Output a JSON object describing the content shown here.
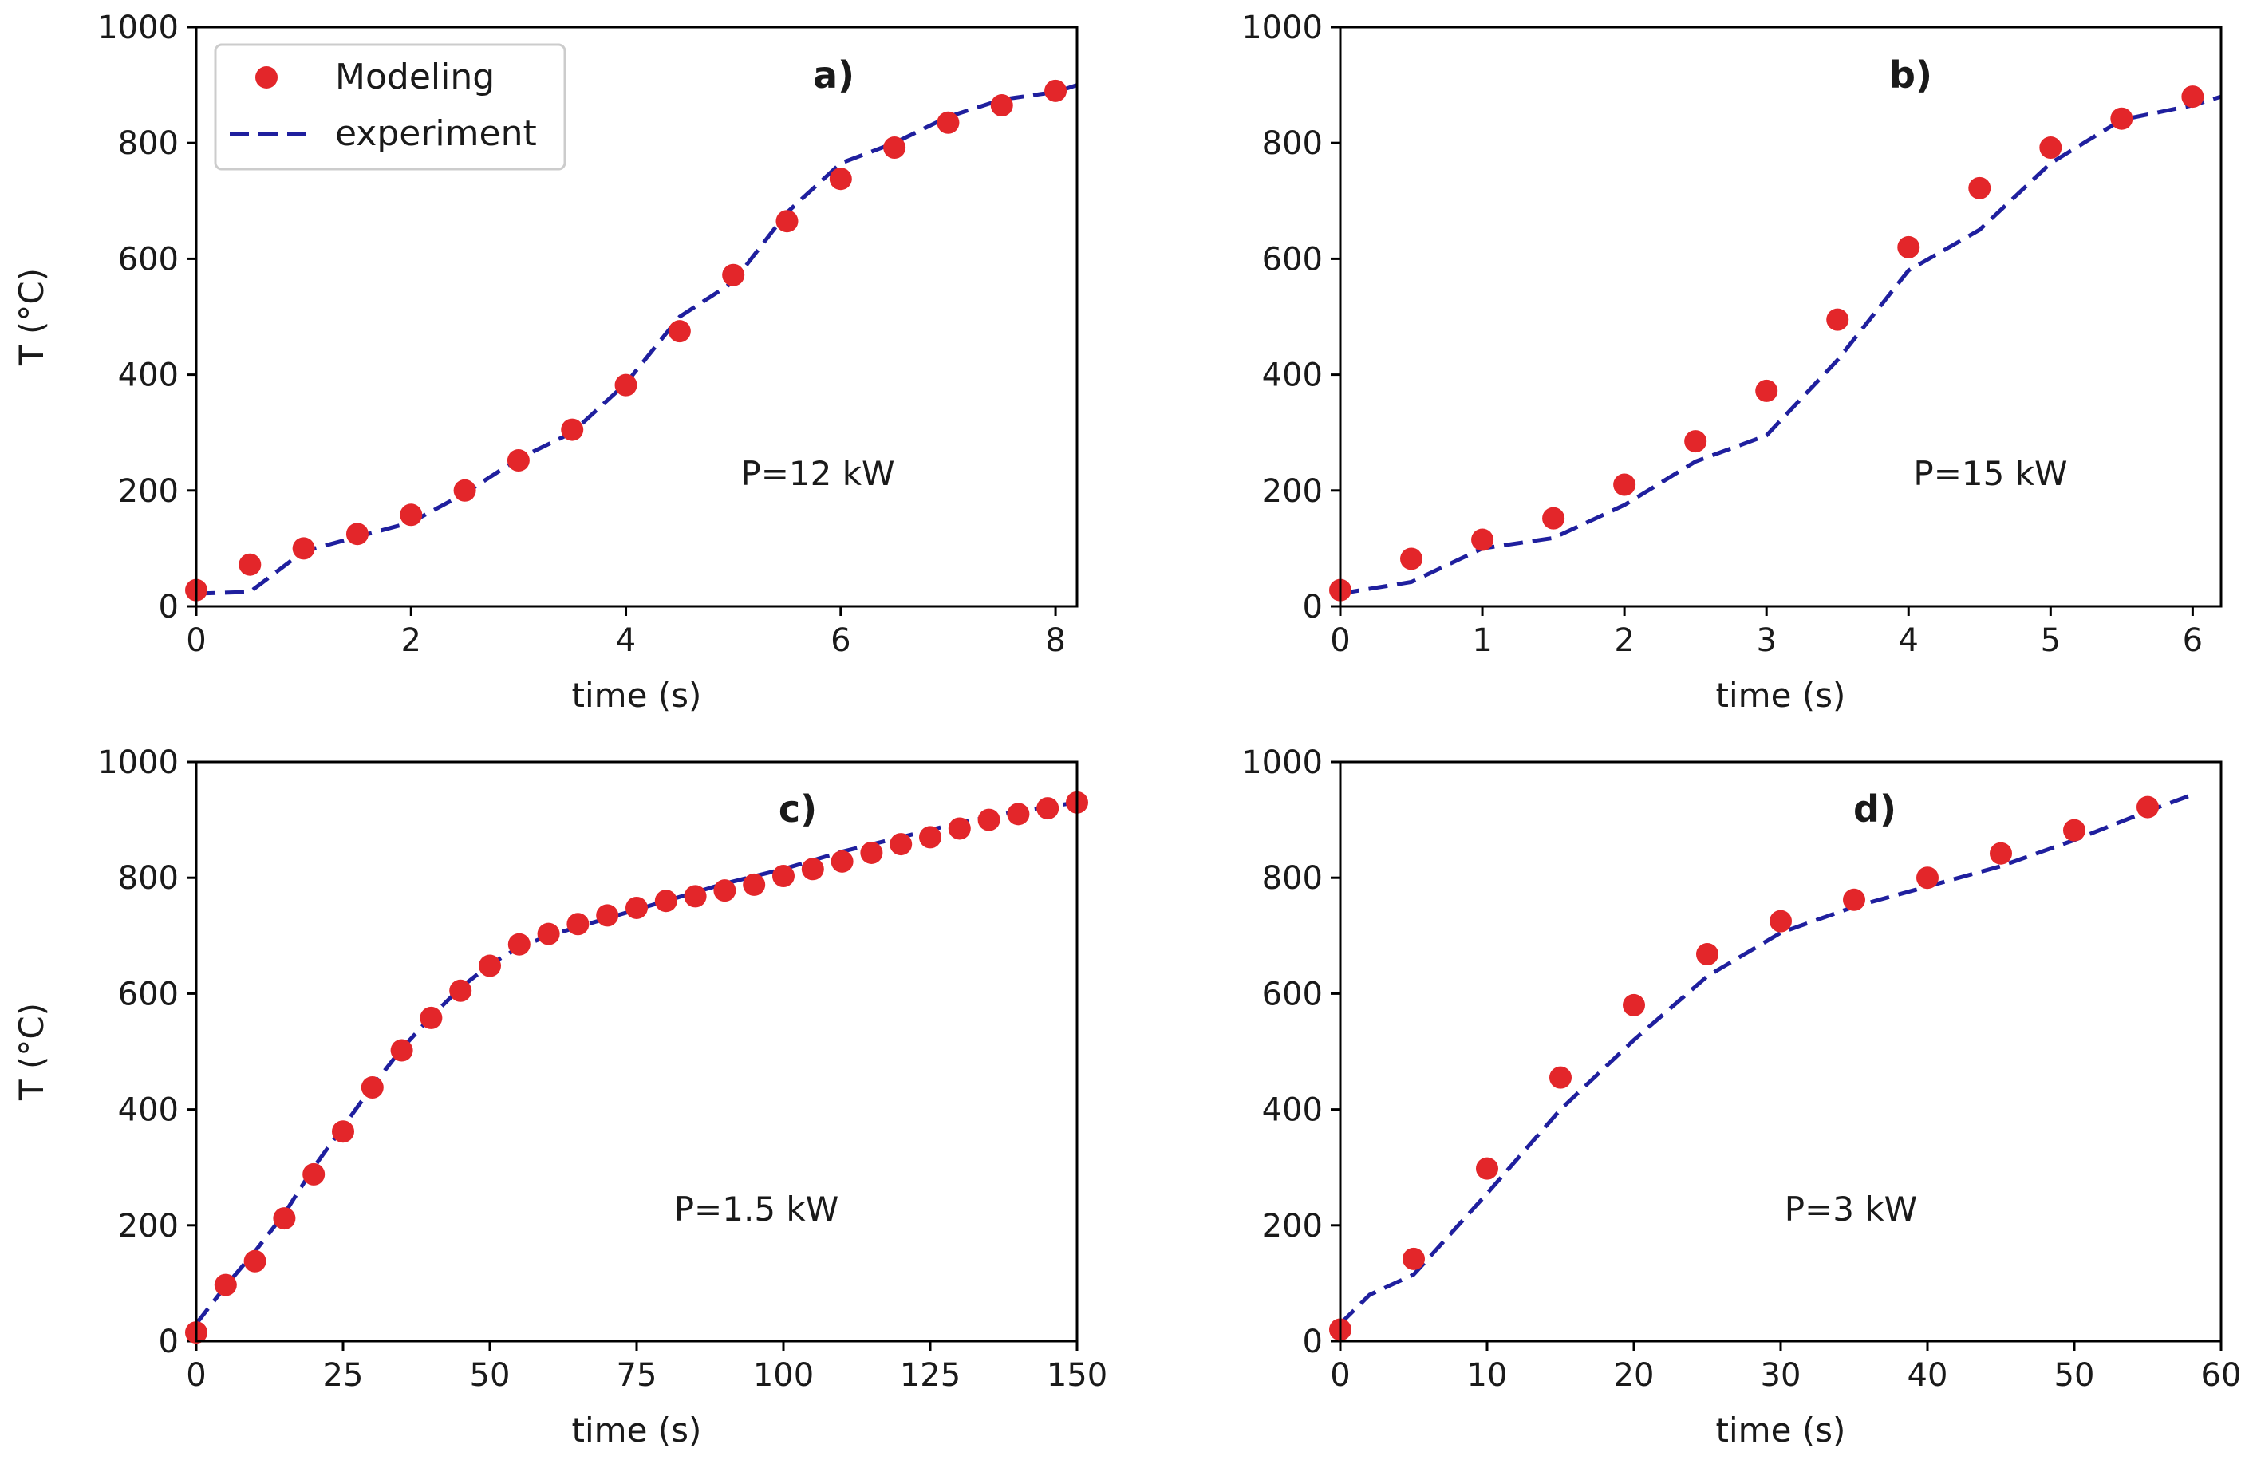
{
  "legend": {
    "modeling": "Modeling",
    "experiment": "experiment"
  },
  "colors": {
    "modeling": "#e3262a",
    "experiment": "#1f1f9e"
  },
  "chart_data": [
    {
      "type": "scatter",
      "panel": "a)",
      "annotation": "P=12 kW",
      "xlabel": "time (s)",
      "ylabel": "T (°C)",
      "xlim": [
        0,
        8.2
      ],
      "ylim": [
        0,
        1000
      ],
      "xticks": [
        0,
        2,
        4,
        6,
        8
      ],
      "yticks": [
        0,
        200,
        400,
        600,
        800,
        1000
      ],
      "legend": "upper left",
      "series": [
        {
          "name": "Modeling",
          "style": "markers",
          "x": [
            0,
            0.5,
            1,
            1.5,
            2,
            2.5,
            3,
            3.5,
            4,
            4.5,
            5,
            5.5,
            6,
            6.5,
            7,
            7.5,
            8
          ],
          "y": [
            28,
            72,
            100,
            125,
            158,
            200,
            252,
            305,
            382,
            475,
            572,
            665,
            738,
            792,
            835,
            865,
            890
          ]
        },
        {
          "name": "experiment",
          "style": "dashed",
          "x": [
            0,
            0.5,
            1,
            1.5,
            2,
            2.5,
            3,
            3.5,
            4,
            4.5,
            5,
            5.5,
            6,
            6.5,
            7,
            7.5,
            8,
            8.2
          ],
          "y": [
            22,
            25,
            95,
            120,
            145,
            195,
            255,
            300,
            385,
            500,
            560,
            680,
            765,
            800,
            845,
            875,
            888,
            900
          ]
        }
      ]
    },
    {
      "type": "scatter",
      "panel": "b)",
      "annotation": "P=15 kW",
      "xlabel": "time (s)",
      "ylabel": "",
      "xlim": [
        0,
        6.2
      ],
      "ylim": [
        0,
        1000
      ],
      "xticks": [
        0,
        1,
        2,
        3,
        4,
        5,
        6
      ],
      "yticks": [
        0,
        200,
        400,
        600,
        800,
        1000
      ],
      "series": [
        {
          "name": "Modeling",
          "style": "markers",
          "x": [
            0,
            0.5,
            1,
            1.5,
            2,
            2.5,
            3,
            3.5,
            4,
            4.5,
            5,
            5.5,
            6
          ],
          "y": [
            28,
            82,
            115,
            152,
            210,
            285,
            372,
            495,
            620,
            722,
            792,
            842,
            880
          ]
        },
        {
          "name": "experiment",
          "style": "dashed",
          "x": [
            0,
            0.5,
            1,
            1.5,
            2,
            2.5,
            3,
            3.5,
            4,
            4.5,
            5,
            5.5,
            6,
            6.2
          ],
          "y": [
            22,
            42,
            100,
            118,
            175,
            250,
            295,
            425,
            580,
            650,
            765,
            840,
            865,
            880
          ]
        }
      ]
    },
    {
      "type": "scatter",
      "panel": "c)",
      "annotation": "P=1.5 kW",
      "xlabel": "time (s)",
      "ylabel": "T (°C)",
      "xlim": [
        0,
        150
      ],
      "ylim": [
        0,
        1000
      ],
      "xticks": [
        0,
        25,
        50,
        75,
        100,
        125,
        150
      ],
      "yticks": [
        0,
        200,
        400,
        600,
        800,
        1000
      ],
      "series": [
        {
          "name": "Modeling",
          "style": "markers",
          "x": [
            0,
            5,
            10,
            15,
            20,
            25,
            30,
            35,
            40,
            45,
            50,
            55,
            60,
            65,
            70,
            75,
            80,
            85,
            90,
            95,
            100,
            105,
            110,
            115,
            120,
            125,
            130,
            135,
            140,
            145,
            150
          ],
          "y": [
            15,
            97,
            138,
            212,
            288,
            362,
            438,
            502,
            558,
            605,
            648,
            685,
            703,
            720,
            735,
            748,
            760,
            768,
            778,
            788,
            803,
            815,
            828,
            843,
            858,
            870,
            885,
            900,
            910,
            920,
            930
          ]
        },
        {
          "name": "experiment",
          "style": "dashed",
          "x": [
            0,
            5,
            10,
            15,
            20,
            25,
            30,
            35,
            40,
            45,
            50,
            55,
            60,
            65,
            70,
            80,
            90,
            100,
            110,
            120,
            130,
            140,
            150
          ],
          "y": [
            30,
            95,
            155,
            220,
            300,
            370,
            440,
            505,
            560,
            610,
            650,
            680,
            700,
            715,
            730,
            760,
            790,
            815,
            845,
            870,
            895,
            915,
            930
          ]
        }
      ]
    },
    {
      "type": "scatter",
      "panel": "d)",
      "annotation": "P=3 kW",
      "xlabel": "time (s)",
      "ylabel": "",
      "xlim": [
        0,
        60
      ],
      "ylim": [
        0,
        1000
      ],
      "xticks": [
        0,
        10,
        20,
        30,
        40,
        50,
        60
      ],
      "yticks": [
        0,
        200,
        400,
        600,
        800,
        1000
      ],
      "series": [
        {
          "name": "Modeling",
          "style": "markers",
          "x": [
            0,
            5,
            10,
            15,
            20,
            25,
            30,
            35,
            40,
            45,
            50,
            55
          ],
          "y": [
            20,
            142,
            298,
            455,
            580,
            668,
            725,
            762,
            800,
            842,
            882,
            922
          ]
        },
        {
          "name": "experiment",
          "style": "dashed",
          "x": [
            0,
            2,
            5,
            10,
            15,
            20,
            25,
            30,
            35,
            40,
            45,
            50,
            55,
            58
          ],
          "y": [
            30,
            80,
            115,
            255,
            400,
            520,
            630,
            705,
            750,
            785,
            820,
            865,
            915,
            943
          ]
        }
      ]
    }
  ]
}
